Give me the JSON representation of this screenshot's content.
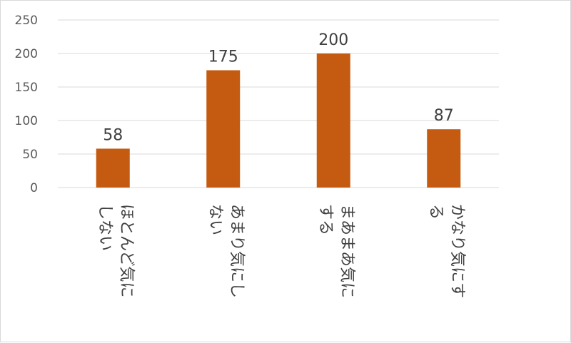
{
  "chart_data": {
    "type": "bar",
    "categories": [
      "ほとんど気にしない",
      "あまり気にしない",
      "まあまあ気にする",
      "かなり気にする"
    ],
    "category_lines": [
      [
        "ほとんど気に",
        "しない"
      ],
      [
        "あまり気にし",
        "ない"
      ],
      [
        "まあまあ気に",
        "する"
      ],
      [
        "かなり気にす",
        "る"
      ]
    ],
    "values": [
      58,
      175,
      200,
      87
    ],
    "ylim": [
      0,
      250
    ],
    "yticks": [
      0,
      50,
      100,
      150,
      200,
      250
    ],
    "grid": true,
    "bar_color": "#c55a11",
    "grid_color": "#d9d9d9"
  }
}
